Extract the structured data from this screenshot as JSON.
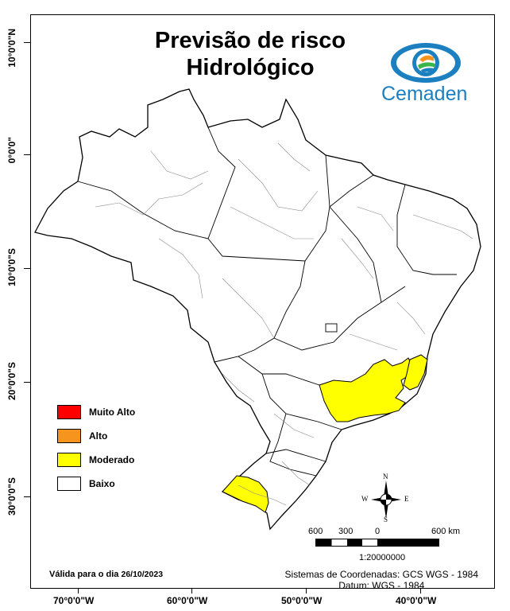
{
  "map": {
    "title_line1": "Previsão de risco",
    "title_line2": "Hidrológico",
    "logo_text": "Cemaden",
    "lat_labels": [
      "10°0'0\"N",
      "0°0'0\"",
      "10°0'0\"S",
      "20°0'0\"S",
      "30°0'0\"S"
    ],
    "lon_labels": [
      "70°0'0\"W",
      "60°0'0\"W",
      "50°0'0\"W",
      "40°0'0\"W"
    ],
    "legend": [
      {
        "label": "Muito Alto",
        "color": "#ff0000"
      },
      {
        "label": "Alto",
        "color": "#f7941d"
      },
      {
        "label": "Moderado",
        "color": "#ffff00"
      },
      {
        "label": "Baixo",
        "color": "#ffffff"
      }
    ],
    "valid_prefix": "Válida para o dia",
    "valid_date": "26/10/2023",
    "crs_line1": "Sistemas de Coordenadas: GCS WGS - 1984",
    "crs_line2": "Datum: WGS - 1984",
    "scale_labels": [
      "600",
      "300",
      "0",
      "600 km"
    ],
    "scale_ratio": "1:20000000",
    "compass": {
      "n": "N",
      "s": "S",
      "e": "E",
      "w": "W"
    },
    "colors": {
      "moderate_fill": "#ffff00",
      "border": "#000000",
      "internal_border": "#8a8a8a",
      "logo_blue": "#1b7fc0"
    }
  }
}
